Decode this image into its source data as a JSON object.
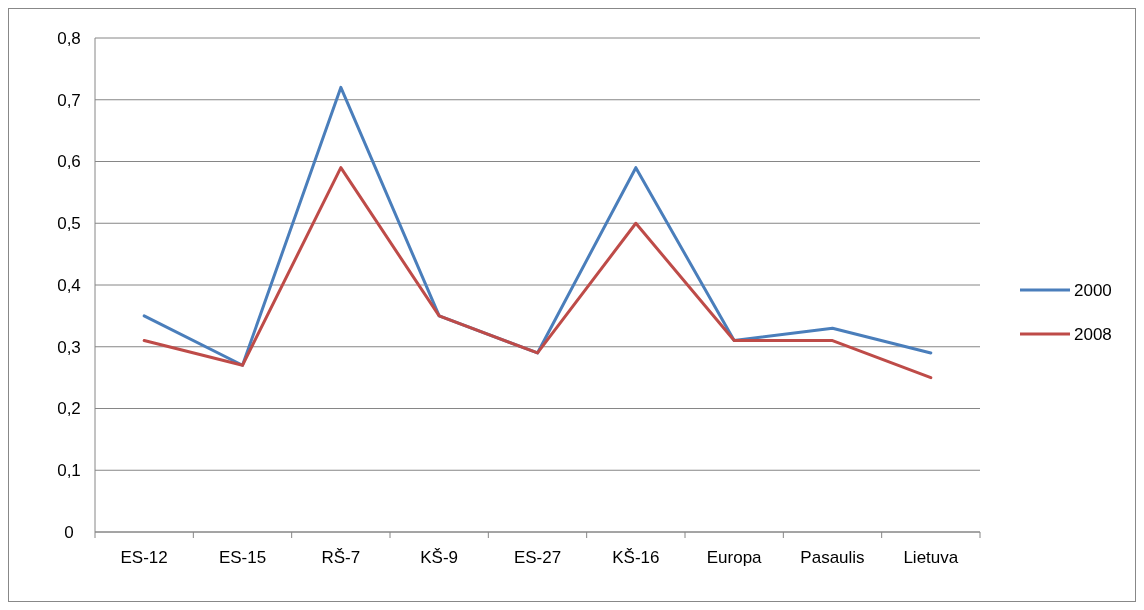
{
  "chart_data": {
    "type": "line",
    "categories": [
      "ES-12",
      "ES-15",
      "RŠ-7",
      "KŠ-9",
      "ES-27",
      "KŠ-16",
      "Europa",
      "Pasaulis",
      "Lietuva"
    ],
    "series": [
      {
        "name": "2000",
        "color": "#4a7ebb",
        "values": [
          0.35,
          0.27,
          0.72,
          0.35,
          0.29,
          0.59,
          0.31,
          0.33,
          0.29
        ]
      },
      {
        "name": "2008",
        "color": "#be4b48",
        "values": [
          0.31,
          0.27,
          0.59,
          0.35,
          0.29,
          0.5,
          0.31,
          0.31,
          0.25
        ]
      }
    ],
    "ylim": [
      0,
      0.8
    ],
    "yticks": [
      {
        "value": 0,
        "label": "0"
      },
      {
        "value": 0.1,
        "label": "0,1"
      },
      {
        "value": 0.2,
        "label": "0,2"
      },
      {
        "value": 0.3,
        "label": "0,3"
      },
      {
        "value": 0.4,
        "label": "0,4"
      },
      {
        "value": 0.5,
        "label": "0,5"
      },
      {
        "value": 0.6,
        "label": "0,6"
      },
      {
        "value": 0.7,
        "label": "0,7"
      },
      {
        "value": 0.8,
        "label": "0,8"
      }
    ],
    "grid": "y",
    "legend": "right",
    "marker": "none",
    "line_style": "solid"
  }
}
